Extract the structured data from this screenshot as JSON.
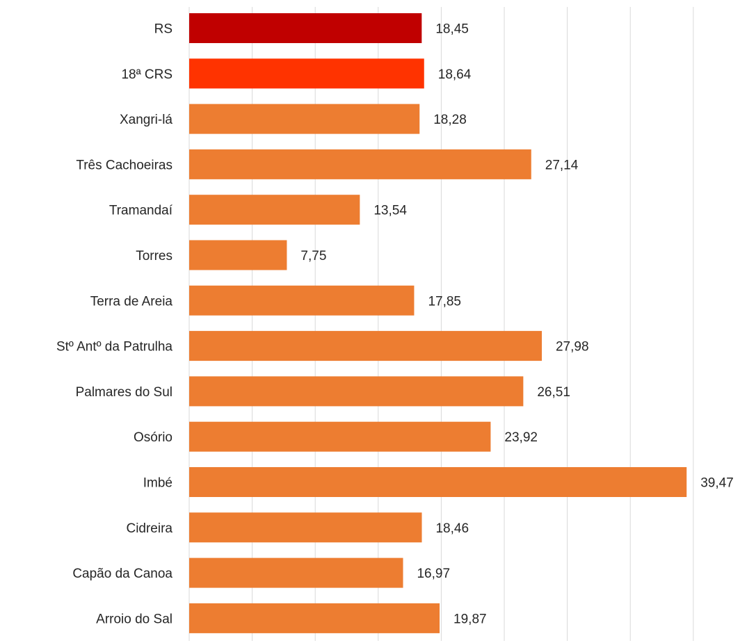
{
  "chart_data": {
    "type": "bar",
    "orientation": "horizontal",
    "categories": [
      "RS",
      "18ª CRS",
      "Xangri-lá",
      "Três Cachoeiras",
      "Tramandaí",
      "Torres",
      "Terra de Areia",
      "Stº Antº da Patrulha",
      "Palmares do Sul",
      "Osório",
      "Imbé",
      "Cidreira",
      "Capão da Canoa",
      "Arroio do Sal"
    ],
    "values": [
      18.45,
      18.64,
      18.28,
      27.14,
      13.54,
      7.75,
      17.85,
      27.98,
      26.51,
      23.92,
      39.47,
      18.46,
      16.97,
      19.87
    ],
    "value_labels": [
      "18,45",
      "18,64",
      "18,28",
      "27,14",
      "13,54",
      "7,75",
      "17,85",
      "27,98",
      "26,51",
      "23,92",
      "39,47",
      "18,46",
      "16,97",
      "19,87"
    ],
    "bar_colors": [
      "#c00000",
      "#ff3300",
      "#ed7d31",
      "#ed7d31",
      "#ed7d31",
      "#ed7d31",
      "#ed7d31",
      "#ed7d31",
      "#ed7d31",
      "#ed7d31",
      "#ed7d31",
      "#ed7d31",
      "#ed7d31",
      "#ed7d31"
    ],
    "xlim": [
      0,
      45
    ],
    "x_grid_step": 5,
    "grid": true,
    "legend": "none",
    "title": "",
    "xlabel": "",
    "ylabel": ""
  }
}
